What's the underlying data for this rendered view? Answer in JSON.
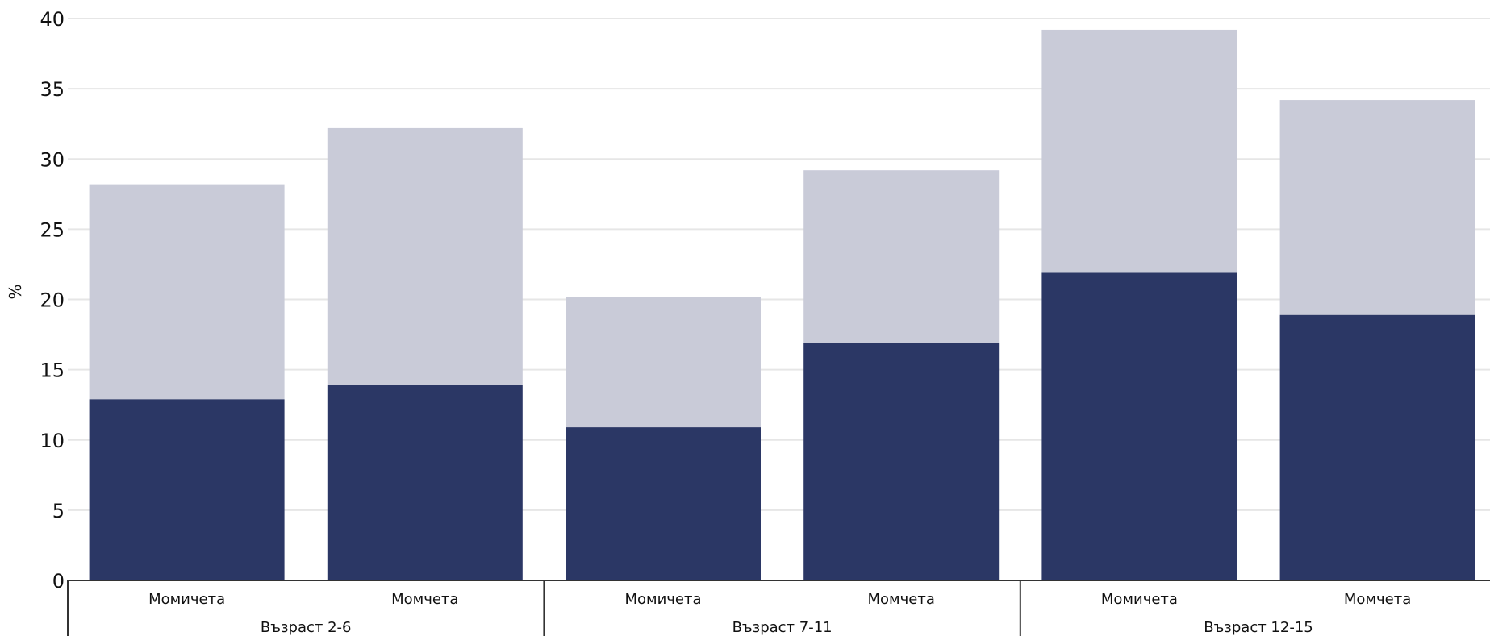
{
  "chart_data": {
    "type": "bar",
    "stacked": true,
    "ylabel": "%",
    "ylim": [
      0,
      40
    ],
    "yticks": [
      0,
      5,
      10,
      15,
      20,
      25,
      30,
      35,
      40
    ],
    "grid": true,
    "groups": [
      {
        "label": "Възраст 2-6",
        "categories": [
          "Момичета",
          "Момчета"
        ]
      },
      {
        "label": "Възраст 7-11",
        "categories": [
          "Момичета",
          "Момчета"
        ]
      },
      {
        "label": "Възраст 12-15",
        "categories": [
          "Момичета",
          "Момчета"
        ]
      }
    ],
    "categories": [
      "Момичета",
      "Момчета",
      "Момичета",
      "Момчета",
      "Момичета",
      "Момчета"
    ],
    "series": [
      {
        "color": "#2b3765",
        "values": [
          12.9,
          13.9,
          10.9,
          16.9,
          21.9,
          18.9
        ]
      },
      {
        "color": "#c9cbd8",
        "values": [
          15.3,
          18.3,
          9.3,
          12.3,
          17.3,
          15.3
        ]
      }
    ],
    "colors": {
      "grid": "#e6e6e6",
      "axis": "#333333"
    }
  }
}
